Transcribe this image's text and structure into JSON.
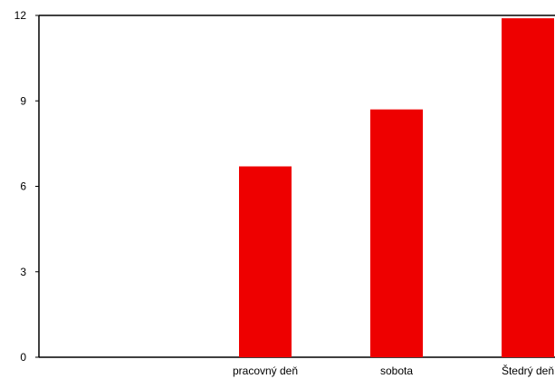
{
  "chart_data": {
    "type": "bar",
    "categories": [
      "",
      "pracovný deň",
      "sobota",
      "Štedrý deň"
    ],
    "values": [
      null,
      6.7,
      8.7,
      11.9
    ],
    "ylim": [
      0,
      12
    ],
    "yticks": [
      "0",
      "3",
      "6",
      "9",
      "12"
    ],
    "grid": false,
    "legend": "none",
    "bar_color": "#ee0000",
    "axis_color": "#000000"
  }
}
